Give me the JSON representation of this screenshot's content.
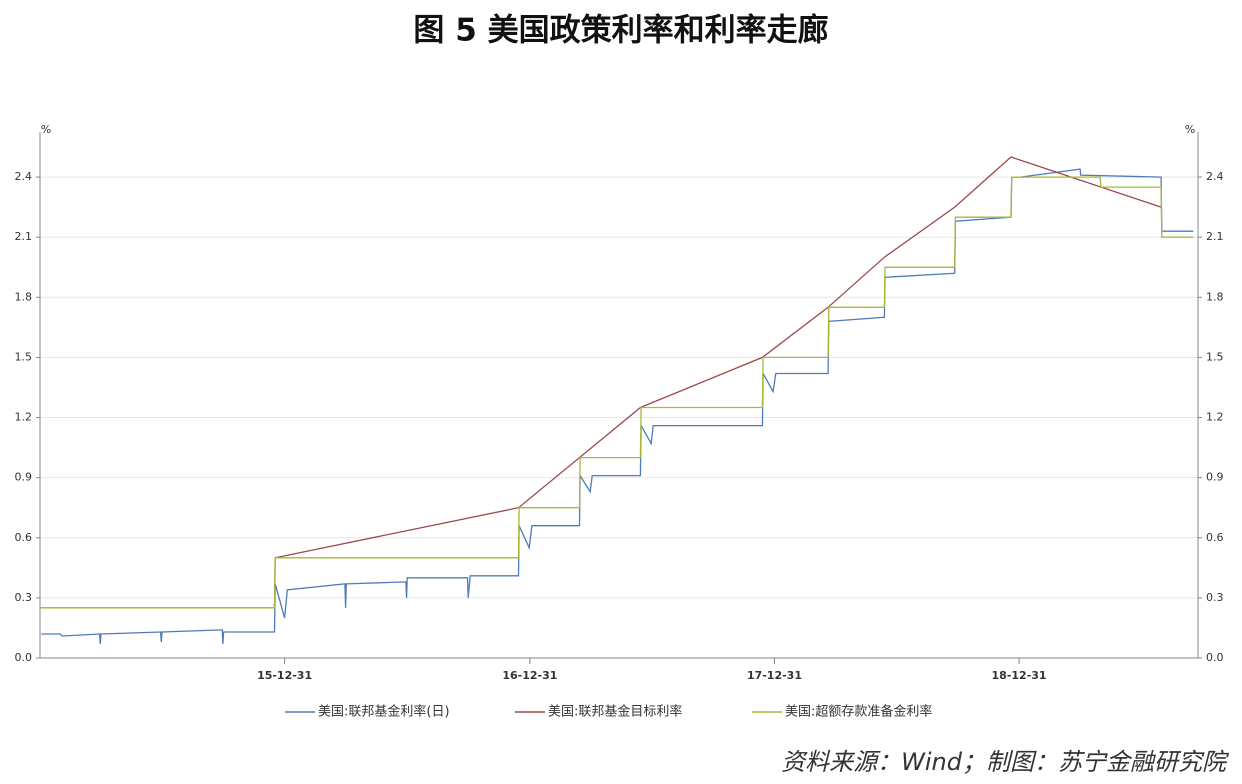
{
  "chart_data": {
    "type": "line",
    "title": "图 5  美国政策利率和利率走廊",
    "source": "资料来源：Wind；制图：苏宁金融研究院",
    "y_unit": "%",
    "y2_unit": "%",
    "xlim": [
      "14-12-31",
      "19-09-24"
    ],
    "xticks": [
      "15-12-31",
      "16-12-31",
      "17-12-31",
      "18-12-31"
    ],
    "ylim": [
      0,
      2.6
    ],
    "yticks": [
      {
        "value": 0,
        "label": "0.0"
      },
      0.3,
      0.6,
      0.9,
      1.2,
      1.5,
      1.8,
      2.1,
      2.4
    ],
    "y2lim": [
      0,
      2.6
    ],
    "y2ticks": [
      {
        "value": 0,
        "label": "0.0"
      },
      0.3,
      0.6,
      0.9,
      1.2,
      1.5,
      1.8,
      2.1,
      2.4
    ],
    "grid": true,
    "legend": "bottom",
    "series": [
      {
        "name": "美国:联邦基金利率(日)",
        "color": "#4f7cb8",
        "x": [
          "15-01-02",
          "15-01-30",
          "15-02-02",
          "15-03-30",
          "15-03-31",
          "15-04-01",
          "15-06-29",
          "15-06-30",
          "15-07-01",
          "15-09-29",
          "15-09-30",
          "15-10-01",
          "15-12-16",
          "15-12-17",
          "15-12-31",
          "16-01-04",
          "16-03-30",
          "16-03-31",
          "16-04-01",
          "16-06-29",
          "16-06-30",
          "16-07-01",
          "16-09-29",
          "16-09-30",
          "16-10-03",
          "16-12-14",
          "16-12-15",
          "16-12-30",
          "17-01-03",
          "17-03-15",
          "17-03-16",
          "17-03-31",
          "17-04-03",
          "17-06-14",
          "17-06-15",
          "17-06-30",
          "17-07-03",
          "17-12-13",
          "17-12-14",
          "17-12-29",
          "18-01-02",
          "18-03-21",
          "18-03-22",
          "18-06-13",
          "18-06-14",
          "18-09-26",
          "18-09-27",
          "18-12-19",
          "18-12-20",
          "19-01-02",
          "19-04-01",
          "19-04-02",
          "19-07-31",
          "19-08-01",
          "19-09-17"
        ],
        "values": [
          0.12,
          0.12,
          0.11,
          0.12,
          0.07,
          0.12,
          0.13,
          0.08,
          0.13,
          0.14,
          0.07,
          0.13,
          0.13,
          0.37,
          0.2,
          0.34,
          0.37,
          0.25,
          0.37,
          0.38,
          0.3,
          0.4,
          0.4,
          0.3,
          0.41,
          0.41,
          0.66,
          0.55,
          0.66,
          0.66,
          0.91,
          0.83,
          0.91,
          0.91,
          1.16,
          1.07,
          1.16,
          1.16,
          1.42,
          1.33,
          1.42,
          1.42,
          1.68,
          1.7,
          1.9,
          1.92,
          2.18,
          2.2,
          2.4,
          2.4,
          2.44,
          2.41,
          2.4,
          2.13,
          2.13
        ]
      },
      {
        "name": "美国:联邦基金目标利率",
        "color": "#9b4a4a",
        "x": [
          "14-12-31",
          "15-12-16",
          "15-12-17",
          "16-12-14",
          "17-03-15",
          "17-06-14",
          "17-12-13",
          "18-03-21",
          "18-06-13",
          "18-09-26",
          "18-12-19",
          "19-07-31"
        ],
        "values": [
          0.25,
          0.25,
          0.5,
          0.75,
          1.0,
          1.25,
          1.5,
          1.75,
          2.0,
          2.25,
          2.5,
          2.25
        ]
      },
      {
        "name": "美国:超额存款准备金利率",
        "color": "#a8b83a",
        "x": [
          "14-12-31",
          "15-12-16",
          "15-12-17",
          "16-12-14",
          "16-12-15",
          "17-03-15",
          "17-03-16",
          "17-06-14",
          "17-06-15",
          "17-12-13",
          "17-12-14",
          "18-03-21",
          "18-03-22",
          "18-06-13",
          "18-06-14",
          "18-09-26",
          "18-09-27",
          "18-12-19",
          "18-12-20",
          "19-05-01",
          "19-05-02",
          "19-07-31",
          "19-08-01",
          "19-09-17"
        ],
        "values": [
          0.25,
          0.25,
          0.5,
          0.5,
          0.75,
          0.75,
          1.0,
          1.0,
          1.25,
          1.25,
          1.5,
          1.5,
          1.75,
          1.75,
          1.95,
          1.95,
          2.2,
          2.2,
          2.4,
          2.4,
          2.35,
          2.35,
          2.1,
          2.1
        ]
      }
    ]
  }
}
